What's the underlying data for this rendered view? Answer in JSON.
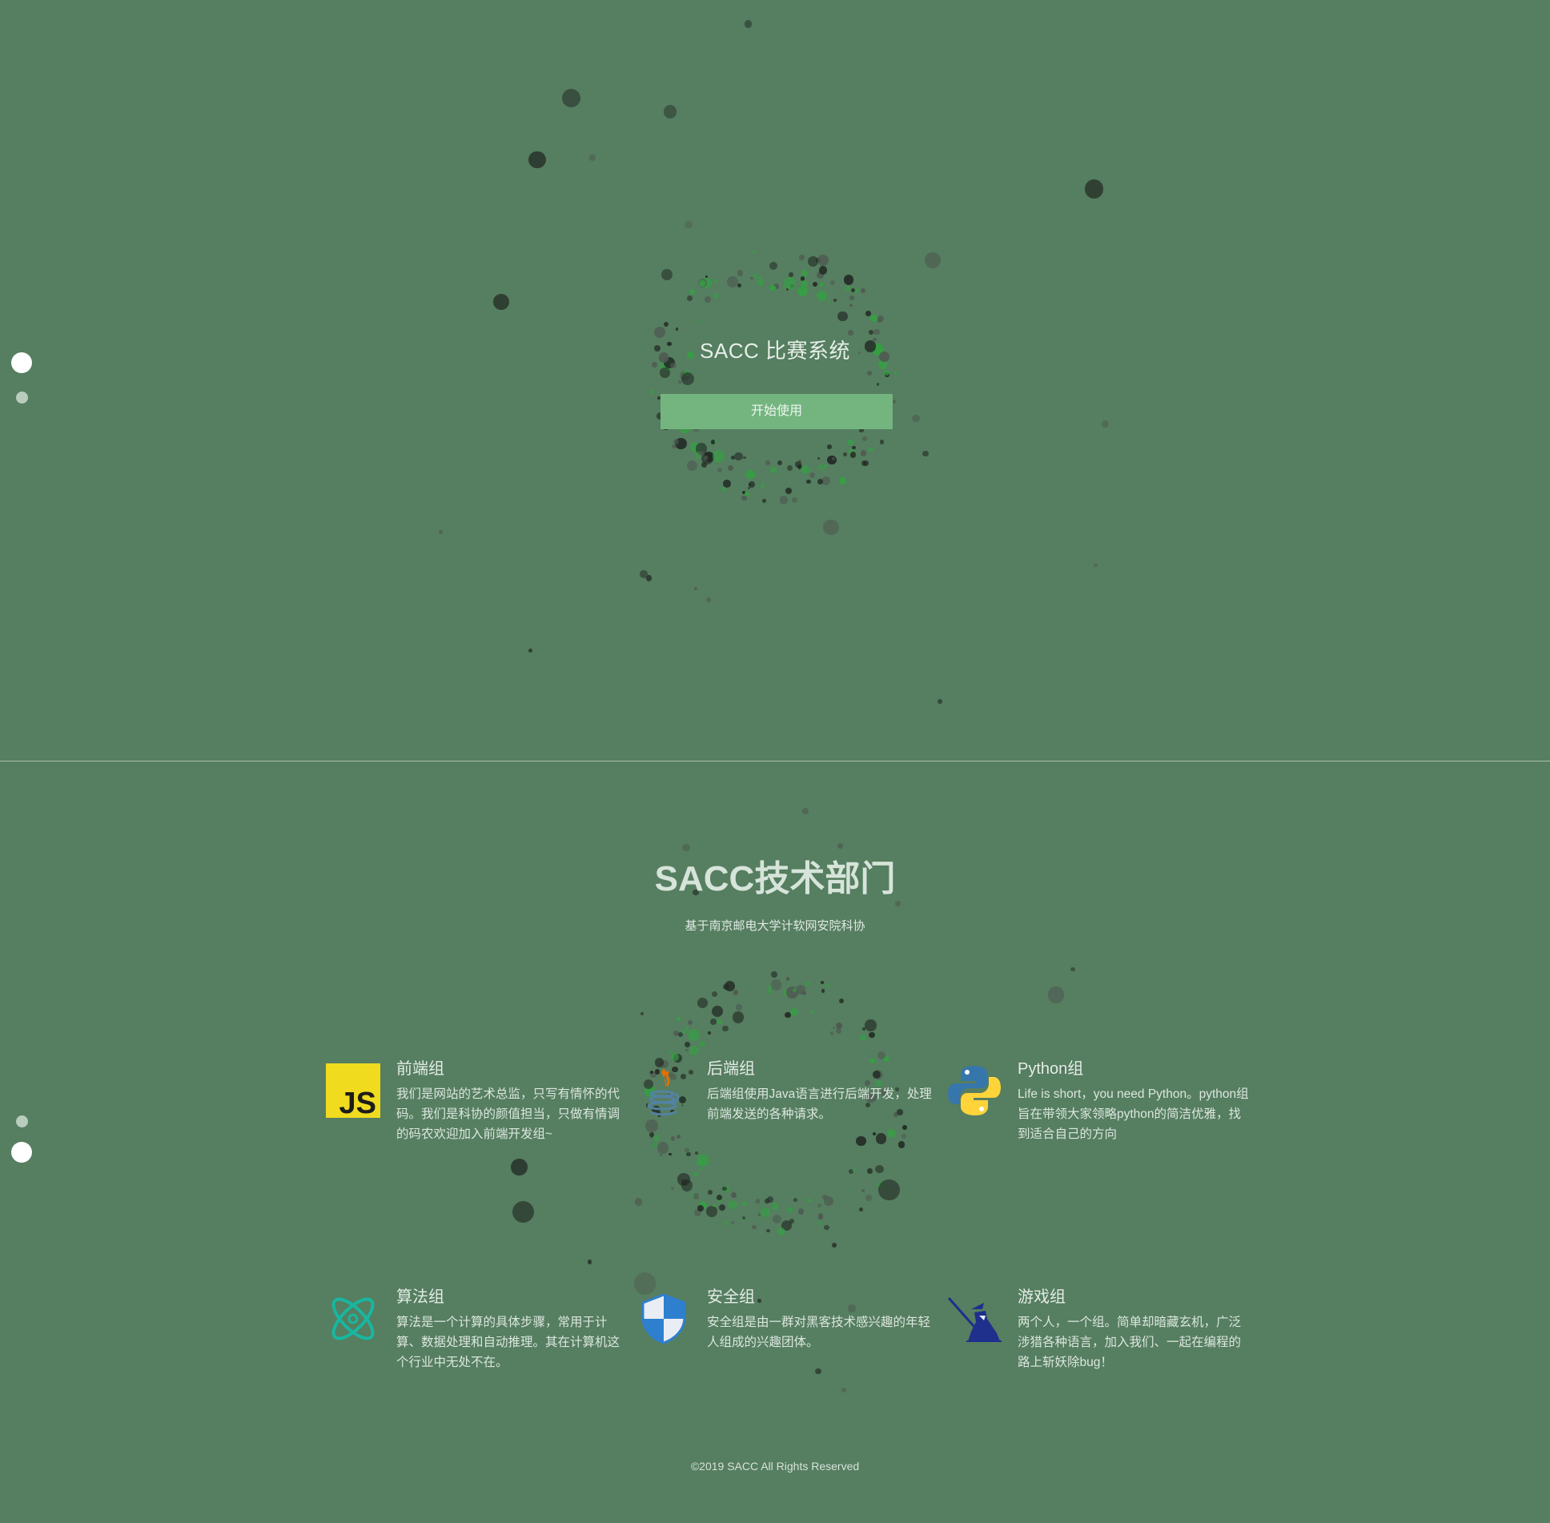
{
  "hero": {
    "title": "SACC 比赛系统",
    "start_button": "开始使用"
  },
  "tech": {
    "title": "SACC技术部门",
    "subtitle": "基于南京邮电大学计软网安院科协",
    "groups": [
      {
        "icon": "javascript-icon",
        "title": "前端组",
        "desc": "我们是网站的艺术总监，只写有情怀的代码。我们是科协的颜值担当，只做有情调的码农欢迎加入前端开发组~"
      },
      {
        "icon": "java-icon",
        "title": "后端组",
        "desc": "后端组使用Java语言进行后端开发，处理前端发送的各种请求。"
      },
      {
        "icon": "python-icon",
        "title": "Python组",
        "desc": "Life is short，you need Python。python组旨在带领大家领略python的简洁优雅，找到适合自己的方向"
      },
      {
        "icon": "atom-icon",
        "title": "算法组",
        "desc": "算法是一个计算的具体步骤，常用于计算、数据处理和自动推理。其在计算机这个行业中无处不在。"
      },
      {
        "icon": "shield-icon",
        "title": "安全组",
        "desc": "安全组是由一群对黑客技术感兴趣的年轻人组成的兴趣团体。"
      },
      {
        "icon": "samurai-icon",
        "title": "游戏组",
        "desc": "两个人，一个组。简单却暗藏玄机，广泛涉猎各种语言，加入我们、一起在编程的路上斩妖除bug！"
      }
    ]
  },
  "footer": {
    "copyright": "©2019 SACC All Rights Reserved"
  },
  "colors": {
    "background": "#567e60",
    "button": "#74b57f",
    "particle_dark": "#222a24",
    "particle_grey": "#4e5a51",
    "particle_green": "#34a043"
  }
}
